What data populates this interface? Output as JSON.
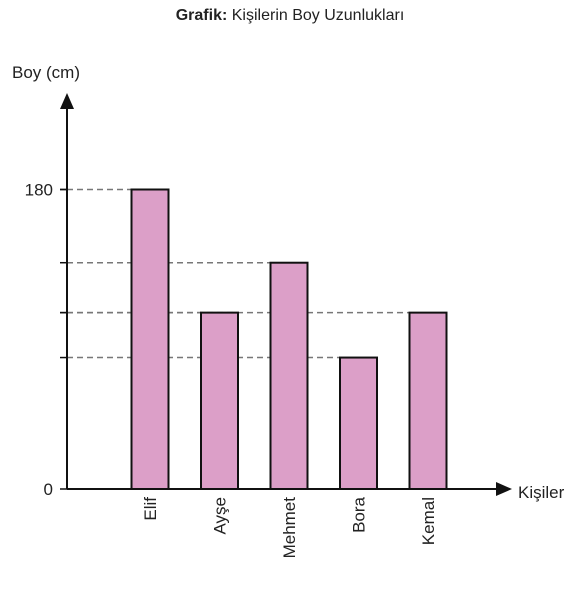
{
  "chart_data": {
    "type": "bar",
    "title_label": "Grafik:",
    "title": "Kişilerin Boy Uzunlukları",
    "y_label": "Boy (cm)",
    "x_label": "Kişiler",
    "categories": [
      "Elif",
      "Ayşe",
      "Mehmet",
      "Bora",
      "Kemal"
    ],
    "values": [
      180,
      106,
      136,
      79,
      106
    ],
    "color": "#dc9fc8",
    "ylim": [
      0,
      238
    ],
    "yticks": [
      0,
      180
    ]
  }
}
